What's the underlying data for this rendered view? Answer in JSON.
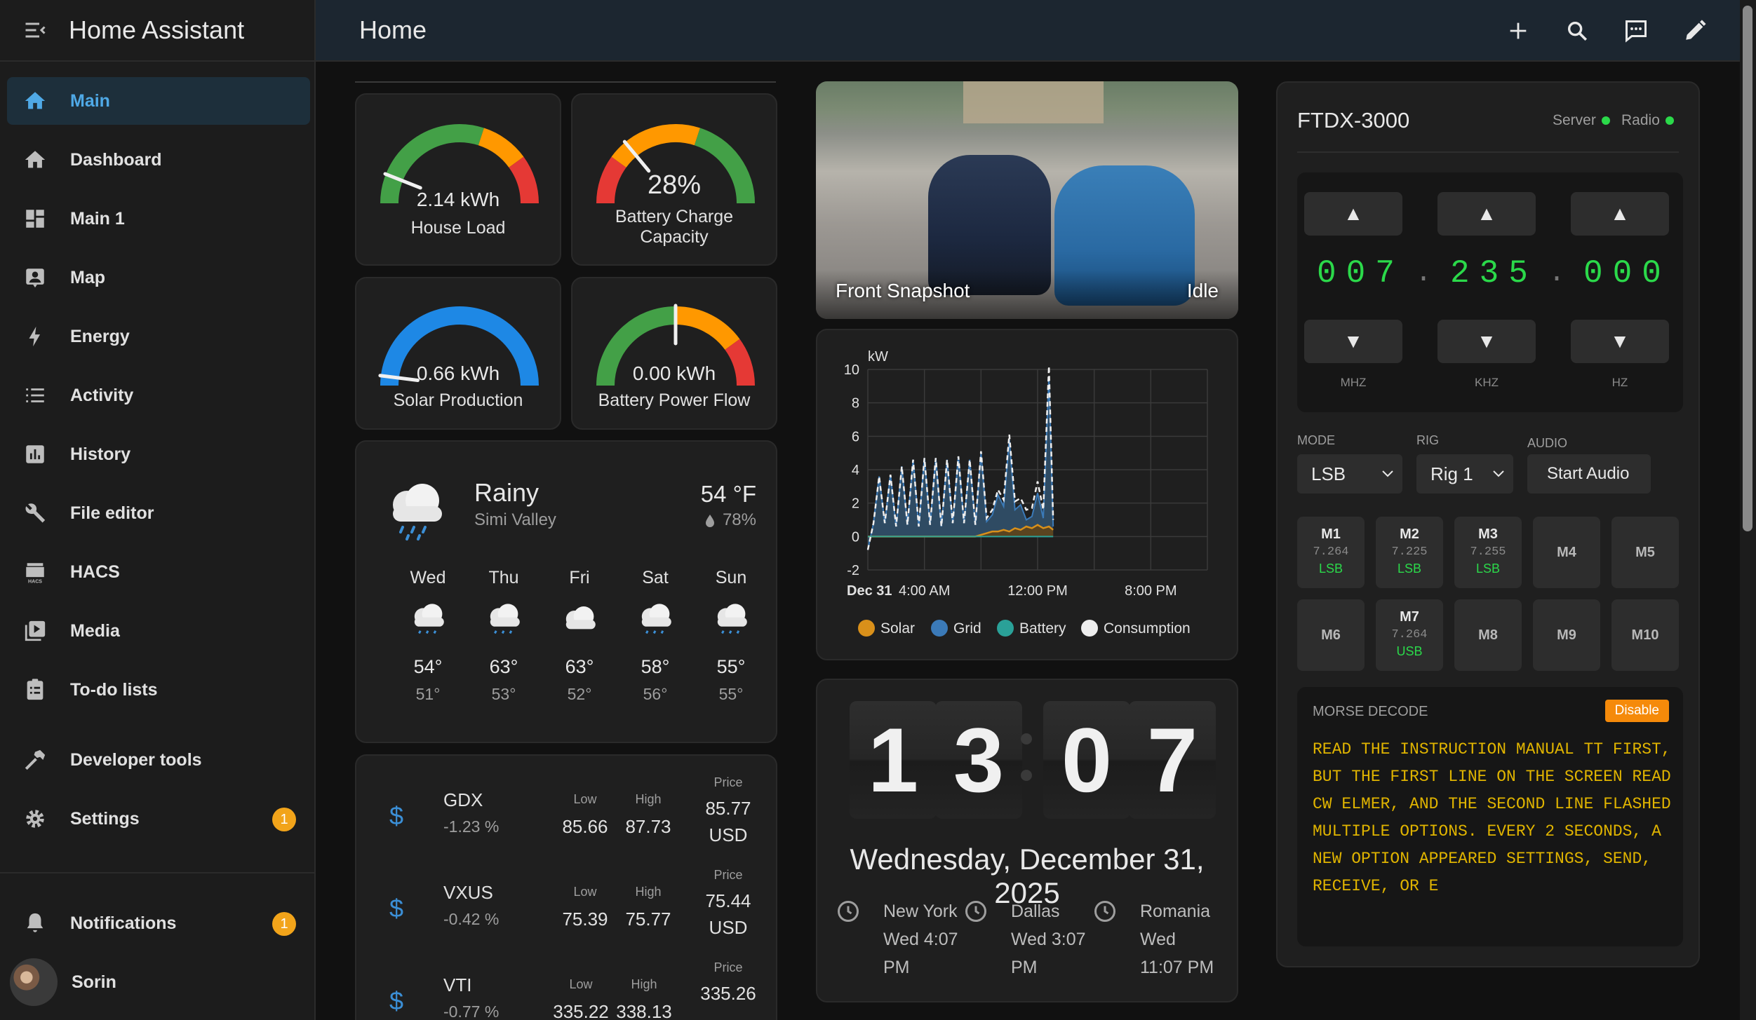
{
  "app": {
    "title": "Home Assistant"
  },
  "sidebar": {
    "items": [
      {
        "label": "Main"
      },
      {
        "label": "Dashboard"
      },
      {
        "label": "Main 1"
      },
      {
        "label": "Map"
      },
      {
        "label": "Energy"
      },
      {
        "label": "Activity"
      },
      {
        "label": "History"
      },
      {
        "label": "File editor"
      },
      {
        "label": "HACS"
      },
      {
        "label": "Media"
      },
      {
        "label": "To-do lists"
      },
      {
        "label": "Developer tools"
      },
      {
        "label": "Settings",
        "badge": "1"
      }
    ],
    "notifications": {
      "label": "Notifications",
      "badge": "1"
    },
    "user": {
      "name": "Sorin"
    },
    "accent": "#4fa9e6"
  },
  "header": {
    "title": "Home"
  },
  "gauges": [
    {
      "value": "2.14 kWh",
      "label": "House Load",
      "level": 0.12
    },
    {
      "value": "28%",
      "label_line1": "Battery Charge",
      "label_line2": "Capacity",
      "level": 0.28
    },
    {
      "value": "0.66 kWh",
      "label": "Solar Production",
      "level": 0.04
    },
    {
      "value": "0.00 kWh",
      "label": "Battery Power Flow",
      "level": 0.5
    }
  ],
  "weather": {
    "condition": "Rainy",
    "location": "Simi Valley",
    "temperature": "54 °F",
    "humidity": "78%",
    "forecast": [
      {
        "day": "Wed",
        "high": "54°",
        "low": "51°"
      },
      {
        "day": "Thu",
        "high": "63°",
        "low": "53°"
      },
      {
        "day": "Fri",
        "high": "63°",
        "low": "52°"
      },
      {
        "day": "Sat",
        "high": "58°",
        "low": "56°"
      },
      {
        "day": "Sun",
        "high": "55°",
        "low": "55°"
      }
    ]
  },
  "stocks": {
    "low_label": "Low",
    "high_label": "High",
    "price_label": "Price",
    "rows": [
      {
        "symbol": "GDX",
        "change": "-1.23 %",
        "low": "85.66",
        "high": "87.73",
        "price": "85.77",
        "currency": "USD"
      },
      {
        "symbol": "VXUS",
        "change": "-0.42 %",
        "low": "75.39",
        "high": "75.77",
        "price": "75.44",
        "currency": "USD"
      },
      {
        "symbol": "VTI",
        "change": "-0.77 %",
        "low": "335.22",
        "high": "338.13",
        "price": "335.26",
        "currency": ""
      }
    ]
  },
  "camera": {
    "name": "Front Snapshot",
    "state": "Idle"
  },
  "chart_data": {
    "type": "line",
    "ylabel": "kW",
    "ylim": [
      -2,
      10
    ],
    "yticks": [
      "10",
      "8",
      "6",
      "4",
      "2",
      "0",
      "-2"
    ],
    "xticks": [
      "Dec 31",
      "4:00 AM",
      "12:00 PM",
      "8:00 PM"
    ],
    "x_hours": [
      0,
      0.4,
      0.8,
      1.2,
      1.6,
      2.0,
      2.4,
      2.8,
      3.2,
      3.6,
      4.0,
      4.4,
      4.8,
      5.2,
      5.6,
      6.0,
      6.4,
      6.8,
      7.2,
      7.6,
      8.0,
      8.4,
      8.8,
      9.2,
      9.6,
      10.0,
      10.4,
      10.8,
      11.2,
      11.6,
      12.0,
      12.4,
      12.8,
      13.1
    ],
    "series": [
      {
        "name": "Solar",
        "color": "#d9901a",
        "values": [
          0,
          0,
          0,
          0,
          0,
          0,
          0,
          0,
          0,
          0,
          0,
          0,
          0,
          0,
          0,
          0,
          0,
          0,
          0,
          0,
          0.1,
          0.2,
          0.3,
          0.3,
          0.4,
          0.3,
          0.5,
          0.4,
          0.6,
          0.5,
          0.7,
          0.5,
          0.6,
          0.4
        ]
      },
      {
        "name": "Grid",
        "color": "#3b7ab8",
        "values": [
          -0.8,
          0.8,
          3.6,
          0.8,
          3.7,
          0.6,
          4.2,
          0.7,
          4.6,
          0.6,
          4.7,
          0.7,
          4.7,
          0.6,
          4.6,
          0.8,
          4.8,
          0.8,
          4.6,
          0.7,
          5.0,
          0.9,
          1.3,
          2.5,
          1.8,
          5.8,
          1.6,
          1.9,
          1.0,
          1.2,
          2.6,
          1.1,
          9.6,
          0.6
        ]
      },
      {
        "name": "Battery",
        "color": "#2aa198",
        "values": [
          0,
          0,
          0,
          0,
          0,
          0,
          0,
          0,
          0,
          0,
          0,
          0,
          0,
          0,
          0,
          0,
          0,
          0,
          0,
          0,
          0,
          0,
          0,
          0,
          0,
          0,
          0,
          0,
          0,
          0,
          0,
          0,
          0,
          0
        ]
      },
      {
        "name": "Consumption",
        "color": "#eeeeee",
        "values": [
          -0.8,
          0.8,
          3.6,
          0.8,
          3.7,
          0.6,
          4.2,
          0.7,
          4.6,
          0.6,
          4.7,
          0.7,
          4.7,
          0.6,
          4.6,
          0.8,
          4.8,
          0.8,
          4.6,
          0.7,
          5.1,
          1.1,
          1.6,
          2.8,
          2.2,
          6.1,
          2.1,
          2.3,
          1.6,
          1.7,
          3.3,
          1.6,
          10.2,
          1.0
        ]
      }
    ]
  },
  "clock": {
    "digits": [
      "1",
      "3",
      "0",
      "7"
    ],
    "date": "Wednesday, December 31, 2025",
    "zones": [
      {
        "city": "New York",
        "day_time": "Wed 4:07",
        "ampm": "PM"
      },
      {
        "city": "Dallas",
        "day_time": "Wed 3:07",
        "ampm": "PM"
      },
      {
        "city": "Romania",
        "day_time": "Wed",
        "ampm": "11:07 PM"
      }
    ]
  },
  "radio": {
    "title": "FTDX-3000",
    "server_label": "Server",
    "radio_label": "Radio",
    "vfo": {
      "mhz": "007",
      "khz": "235",
      "hz": "000",
      "sep": ".",
      "up": "▲",
      "down": "▼",
      "mhz_label": "MHZ",
      "khz_label": "KHZ",
      "hz_label": "HZ"
    },
    "mode_label": "MODE",
    "mode_value": "LSB",
    "rig_label": "RIG",
    "rig_value": "Rig 1",
    "audio_label": "AUDIO",
    "audio_button": "Start Audio",
    "memories": [
      {
        "name": "M1",
        "freq": "7.264",
        "mode": "LSB"
      },
      {
        "name": "M2",
        "freq": "7.225",
        "mode": "LSB"
      },
      {
        "name": "M3",
        "freq": "7.255",
        "mode": "LSB"
      },
      {
        "name": "M4",
        "freq": "",
        "mode": ""
      },
      {
        "name": "M5",
        "freq": "",
        "mode": ""
      },
      {
        "name": "M6",
        "freq": "",
        "mode": ""
      },
      {
        "name": "M7",
        "freq": "7.264",
        "mode": "USB"
      },
      {
        "name": "M8",
        "freq": "",
        "mode": ""
      },
      {
        "name": "M9",
        "freq": "",
        "mode": ""
      },
      {
        "name": "M10",
        "freq": "",
        "mode": ""
      }
    ],
    "morse": {
      "label": "MORSE DECODE",
      "button": "Disable",
      "text": "READ THE INSTRUCTION MANUAL TT FIRST, BUT THE FIRST LINE ON THE SCREEN READ CW ELMER, AND THE SECOND LINE FLASHED MULTIPLE OPTIONS. EVERY 2 SECONDS, A NEW OPTION APPEARED SETTINGS, SEND, RECEIVE, OR E"
    }
  }
}
